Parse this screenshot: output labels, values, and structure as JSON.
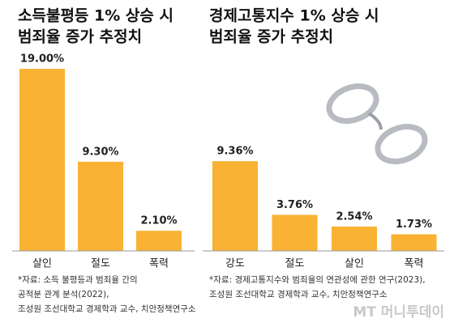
{
  "chart_data": [
    {
      "type": "bar",
      "title": [
        "소득불평등 1% 상승 시",
        "범죄율 증가 추정치"
      ],
      "categories": [
        "살인",
        "절도",
        "폭력"
      ],
      "values": [
        19.0,
        9.3,
        2.1
      ],
      "value_labels": [
        "19.00%",
        "9.30%",
        "2.10%"
      ],
      "color": "#f9b233",
      "source": [
        "*자료: 소득 불평등과 범죄율 간의",
        "공적분 관계 분석(2022),",
        "조성원 조선대학교 경제학과 교수, 치안정책연구소"
      ]
    },
    {
      "type": "bar",
      "title": [
        "경제고통지수 1% 상승 시",
        "범죄율 증가 추정치"
      ],
      "categories": [
        "강도",
        "절도",
        "살인",
        "폭력"
      ],
      "values": [
        9.36,
        3.76,
        2.54,
        1.73
      ],
      "value_labels": [
        "9.36%",
        "3.76%",
        "2.54%",
        "1.73%"
      ],
      "color": "#f9b233",
      "source": [
        "*자료: 경제고통지수와 범죄율의 연관성에 관한 연구(2023),",
        "조성원 조선대학교 경제학과 교수, 치안정책연구소"
      ]
    }
  ],
  "logo": "MT 머니투데이"
}
